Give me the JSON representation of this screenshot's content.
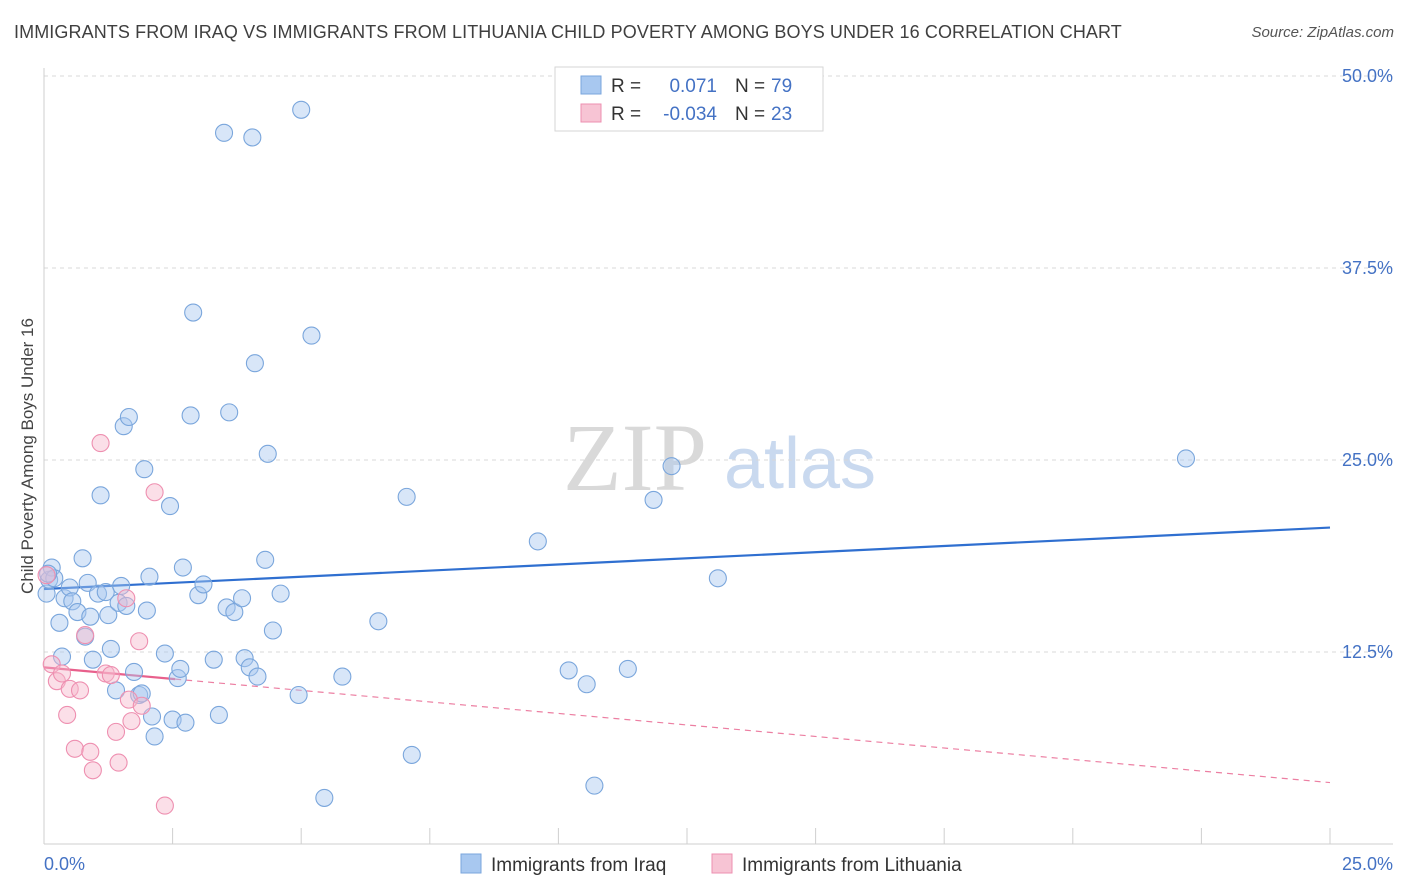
{
  "title": "IMMIGRANTS FROM IRAQ VS IMMIGRANTS FROM LITHUANIA CHILD POVERTY AMONG BOYS UNDER 16 CORRELATION CHART",
  "source": "Source: ZipAtlas.com",
  "watermark": {
    "zip": "ZIP",
    "atlas": "atlas"
  },
  "colors": {
    "iraq_fill": "#a8c8f0",
    "iraq_stroke": "#7aa6dc",
    "iraq_line": "#2f6fd0",
    "lith_fill": "#f7b8cc",
    "lith_stroke": "#ee8fb0",
    "lith_line": "#e8608c",
    "grid": "#d8d8d8",
    "tick_text": "#4472c4"
  },
  "legend": {
    "rows": [
      {
        "r_label": "R =",
        "r_value": "0.071",
        "n_label": "N =",
        "n_value": "79"
      },
      {
        "r_label": "R =",
        "r_value": "-0.034",
        "n_label": "N =",
        "n_value": "23"
      }
    ]
  },
  "chart_data": {
    "type": "scatter",
    "title": "IMMIGRANTS FROM IRAQ VS IMMIGRANTS FROM LITHUANIA CHILD POVERTY AMONG BOYS UNDER 16 CORRELATION CHART",
    "xlabel": "",
    "ylabel": "Child Poverty Among Boys Under 16",
    "xlim": [
      0,
      25
    ],
    "ylim": [
      0,
      50
    ],
    "x_tick_labels": [
      "0.0%",
      "25.0%"
    ],
    "y_ticks": [
      12.5,
      25.0,
      37.5,
      50.0
    ],
    "y_tick_labels": [
      "12.5%",
      "25.0%",
      "37.5%",
      "50.0%"
    ],
    "legend_entries": [
      "Immigrants from Iraq",
      "Immigrants from Lithuania"
    ],
    "series": [
      {
        "name": "Immigrants from Iraq",
        "trend": {
          "x": [
            0,
            25
          ],
          "y": [
            16.6,
            20.6
          ],
          "style": "solid"
        },
        "points": [
          {
            "x": 0.05,
            "y": 16.3
          },
          {
            "x": 0.1,
            "y": 17.2
          },
          {
            "x": 0.15,
            "y": 18.0
          },
          {
            "x": 0.2,
            "y": 17.3
          },
          {
            "x": 0.3,
            "y": 14.4
          },
          {
            "x": 0.35,
            "y": 12.2
          },
          {
            "x": 0.4,
            "y": 16.0
          },
          {
            "x": 0.5,
            "y": 16.7
          },
          {
            "x": 0.55,
            "y": 15.8
          },
          {
            "x": 0.65,
            "y": 15.1
          },
          {
            "x": 0.75,
            "y": 18.6
          },
          {
            "x": 0.8,
            "y": 13.5
          },
          {
            "x": 0.85,
            "y": 17.0
          },
          {
            "x": 0.9,
            "y": 14.8
          },
          {
            "x": 0.95,
            "y": 12.0
          },
          {
            "x": 1.05,
            "y": 16.3
          },
          {
            "x": 1.1,
            "y": 22.7
          },
          {
            "x": 1.2,
            "y": 16.4
          },
          {
            "x": 1.25,
            "y": 14.9
          },
          {
            "x": 1.3,
            "y": 12.7
          },
          {
            "x": 1.4,
            "y": 10.0
          },
          {
            "x": 1.45,
            "y": 15.7
          },
          {
            "x": 1.5,
            "y": 16.8
          },
          {
            "x": 1.55,
            "y": 27.2
          },
          {
            "x": 1.6,
            "y": 15.5
          },
          {
            "x": 1.65,
            "y": 27.8
          },
          {
            "x": 1.75,
            "y": 11.2
          },
          {
            "x": 1.85,
            "y": 9.7
          },
          {
            "x": 1.9,
            "y": 9.8
          },
          {
            "x": 1.95,
            "y": 24.4
          },
          {
            "x": 2.0,
            "y": 15.2
          },
          {
            "x": 2.05,
            "y": 17.4
          },
          {
            "x": 2.1,
            "y": 8.3
          },
          {
            "x": 2.15,
            "y": 7.0
          },
          {
            "x": 2.35,
            "y": 12.4
          },
          {
            "x": 2.45,
            "y": 22.0
          },
          {
            "x": 2.5,
            "y": 8.1
          },
          {
            "x": 2.6,
            "y": 10.8
          },
          {
            "x": 2.65,
            "y": 11.4
          },
          {
            "x": 2.7,
            "y": 18.0
          },
          {
            "x": 2.75,
            "y": 7.9
          },
          {
            "x": 2.85,
            "y": 27.9
          },
          {
            "x": 2.9,
            "y": 34.6
          },
          {
            "x": 3.0,
            "y": 16.2
          },
          {
            "x": 3.1,
            "y": 16.9
          },
          {
            "x": 3.3,
            "y": 12.0
          },
          {
            "x": 3.4,
            "y": 8.4
          },
          {
            "x": 3.5,
            "y": 46.3
          },
          {
            "x": 3.55,
            "y": 15.4
          },
          {
            "x": 3.6,
            "y": 28.1
          },
          {
            "x": 3.7,
            "y": 15.1
          },
          {
            "x": 3.85,
            "y": 16.0
          },
          {
            "x": 3.9,
            "y": 12.1
          },
          {
            "x": 4.0,
            "y": 11.5
          },
          {
            "x": 4.05,
            "y": 46.0
          },
          {
            "x": 4.1,
            "y": 31.3
          },
          {
            "x": 4.15,
            "y": 10.9
          },
          {
            "x": 4.35,
            "y": 25.4
          },
          {
            "x": 4.3,
            "y": 18.5
          },
          {
            "x": 4.45,
            "y": 13.9
          },
          {
            "x": 4.6,
            "y": 16.3
          },
          {
            "x": 4.95,
            "y": 9.7
          },
          {
            "x": 5.0,
            "y": 47.8
          },
          {
            "x": 5.2,
            "y": 33.1
          },
          {
            "x": 5.45,
            "y": 3.0
          },
          {
            "x": 5.8,
            "y": 10.9
          },
          {
            "x": 6.5,
            "y": 14.5
          },
          {
            "x": 7.05,
            "y": 22.6
          },
          {
            "x": 7.15,
            "y": 5.8
          },
          {
            "x": 9.6,
            "y": 19.7
          },
          {
            "x": 10.2,
            "y": 11.3
          },
          {
            "x": 10.55,
            "y": 10.4
          },
          {
            "x": 10.7,
            "y": 3.8
          },
          {
            "x": 11.35,
            "y": 11.4
          },
          {
            "x": 11.85,
            "y": 22.4
          },
          {
            "x": 12.2,
            "y": 24.6
          },
          {
            "x": 13.1,
            "y": 17.3
          },
          {
            "x": 22.2,
            "y": 25.1
          },
          {
            "x": 0.08,
            "y": 17.6
          }
        ]
      },
      {
        "name": "Immigrants from Lithuania",
        "trend": {
          "x": [
            0,
            25
          ],
          "y": [
            11.5,
            4.0
          ],
          "style": "solid-to-dashed",
          "solid_until_x": 2.55
        },
        "points": [
          {
            "x": 0.05,
            "y": 17.5
          },
          {
            "x": 0.15,
            "y": 11.7
          },
          {
            "x": 0.25,
            "y": 10.6
          },
          {
            "x": 0.35,
            "y": 11.1
          },
          {
            "x": 0.45,
            "y": 8.4
          },
          {
            "x": 0.5,
            "y": 10.1
          },
          {
            "x": 0.6,
            "y": 6.2
          },
          {
            "x": 0.7,
            "y": 10.0
          },
          {
            "x": 0.8,
            "y": 13.6
          },
          {
            "x": 0.9,
            "y": 6.0
          },
          {
            "x": 0.95,
            "y": 4.8
          },
          {
            "x": 1.1,
            "y": 26.1
          },
          {
            "x": 1.2,
            "y": 11.1
          },
          {
            "x": 1.3,
            "y": 11.0
          },
          {
            "x": 1.4,
            "y": 7.3
          },
          {
            "x": 1.45,
            "y": 5.3
          },
          {
            "x": 1.6,
            "y": 16.0
          },
          {
            "x": 1.65,
            "y": 9.4
          },
          {
            "x": 1.7,
            "y": 8.0
          },
          {
            "x": 1.85,
            "y": 13.2
          },
          {
            "x": 1.9,
            "y": 9.0
          },
          {
            "x": 2.15,
            "y": 22.9
          },
          {
            "x": 2.35,
            "y": 2.5
          }
        ]
      }
    ]
  },
  "bottom_legend": [
    {
      "label": "Immigrants from Iraq"
    },
    {
      "label": "Immigrants from Lithuania"
    }
  ]
}
